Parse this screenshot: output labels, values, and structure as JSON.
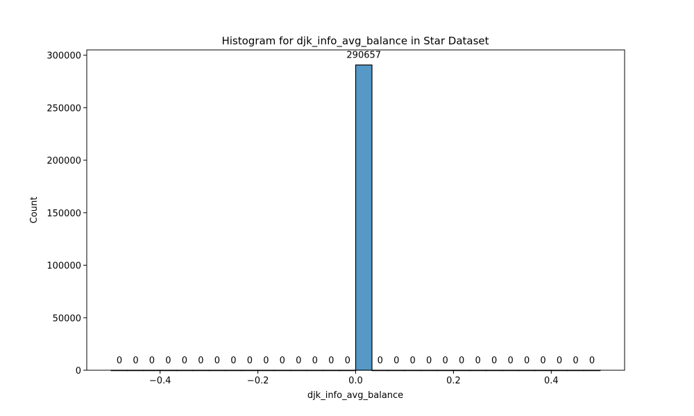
{
  "chart_data": {
    "type": "bar",
    "title": "Histogram for djk_info_avg_balance in Star Dataset",
    "xlabel": "djk_info_avg_balance",
    "ylabel": "Count",
    "xlim": [
      -0.55,
      0.55
    ],
    "ylim": [
      0,
      305000
    ],
    "bin_start": -0.5,
    "bin_width": 0.0333333,
    "values": [
      0,
      0,
      0,
      0,
      0,
      0,
      0,
      0,
      0,
      0,
      0,
      0,
      0,
      0,
      0,
      290657,
      0,
      0,
      0,
      0,
      0,
      0,
      0,
      0,
      0,
      0,
      0,
      0,
      0,
      0
    ],
    "data_labels": [
      "0",
      "0",
      "0",
      "0",
      "0",
      "0",
      "0",
      "0",
      "0",
      "0",
      "0",
      "0",
      "0",
      "0",
      "0",
      "290657",
      "0",
      "0",
      "0",
      "0",
      "0",
      "0",
      "0",
      "0",
      "0",
      "0",
      "0",
      "0",
      "0",
      "0"
    ],
    "xticks": [
      -0.4,
      -0.2,
      0.0,
      0.2,
      0.4
    ],
    "xtick_labels": [
      "−0.4",
      "−0.2",
      "0.0",
      "0.2",
      "0.4"
    ],
    "yticks": [
      0,
      50000,
      100000,
      150000,
      200000,
      250000,
      300000
    ],
    "ytick_labels": [
      "0",
      "50000",
      "100000",
      "150000",
      "200000",
      "250000",
      "300000"
    ],
    "grid": false,
    "bar_color": "#5698c6",
    "edge_color": "#000000"
  }
}
